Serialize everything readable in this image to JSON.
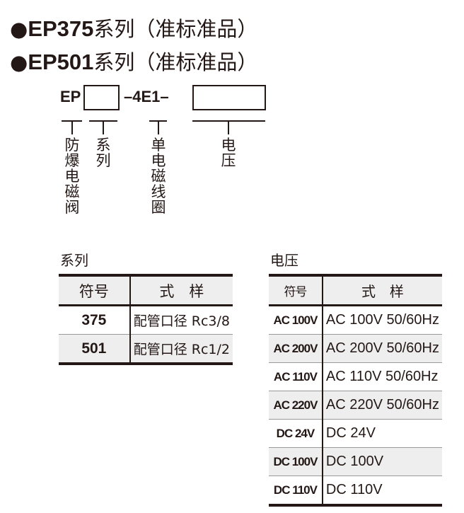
{
  "titles": [
    {
      "bullet": "●",
      "model": "EP375",
      "text": "系列（准标准品）"
    },
    {
      "bullet": "●",
      "model": "EP501",
      "text": "系列（准标准品）"
    }
  ],
  "code": {
    "prefix": "EP",
    "middle": "–4E1–"
  },
  "labels": {
    "explosion_proof": "防爆电磁阀",
    "series": "系列",
    "single_coil": "单电磁线圈",
    "voltage": "电压"
  },
  "series_table": {
    "caption": "系列",
    "headers": [
      "符号",
      "式　样"
    ],
    "rows": [
      [
        "375",
        "配管口径 Rc3/8"
      ],
      [
        "501",
        "配管口径 Rc1/2"
      ]
    ]
  },
  "voltage_table": {
    "caption": "电压",
    "headers": [
      "符号",
      "式　样"
    ],
    "rows": [
      [
        "AC 100V",
        "AC 100V 50/60Hz"
      ],
      [
        "AC 200V",
        "AC 200V 50/60Hz"
      ],
      [
        "AC 110V",
        "AC 110V 50/60Hz"
      ],
      [
        "AC 220V",
        "AC 220V 50/60Hz"
      ],
      [
        "DC 24V",
        "DC 24V"
      ],
      [
        "DC 100V",
        "DC 100V"
      ],
      [
        "DC 110V",
        "DC 110V"
      ]
    ]
  }
}
